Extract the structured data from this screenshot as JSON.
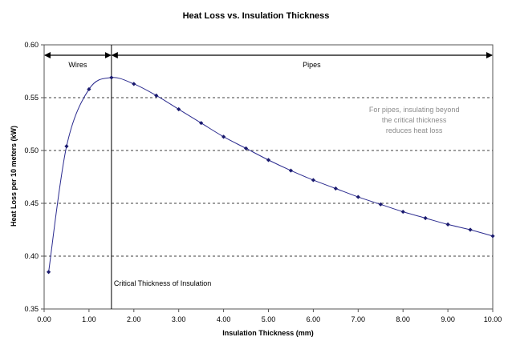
{
  "chart_data": {
    "type": "line",
    "title": "Heat Loss vs. Insulation Thickness",
    "xlabel": "Insulation Thickness (mm)",
    "ylabel": "Heat Loss per 10 meters (kW)",
    "xlim": [
      0,
      10
    ],
    "ylim": [
      0.35,
      0.6
    ],
    "x_ticks": [
      "0.00",
      "1.00",
      "2.00",
      "3.00",
      "4.00",
      "5.00",
      "6.00",
      "7.00",
      "8.00",
      "9.00",
      "10.00"
    ],
    "y_ticks": [
      "0.35",
      "0.40",
      "0.45",
      "0.50",
      "0.55",
      "0.60"
    ],
    "grid": "horizontal dashed",
    "series": [
      {
        "color": "#2b2b8f",
        "points": [
          [
            0.1,
            0.385
          ],
          [
            0.5,
            0.504
          ],
          [
            1.0,
            0.558
          ],
          [
            1.5,
            0.569
          ],
          [
            2.0,
            0.563
          ],
          [
            2.5,
            0.552
          ],
          [
            3.0,
            0.539
          ],
          [
            3.5,
            0.526
          ],
          [
            4.0,
            0.513
          ],
          [
            4.5,
            0.502
          ],
          [
            5.0,
            0.491
          ],
          [
            5.5,
            0.481
          ],
          [
            6.0,
            0.472
          ],
          [
            6.5,
            0.464
          ],
          [
            7.0,
            0.456
          ],
          [
            7.5,
            0.449
          ],
          [
            8.0,
            0.442
          ],
          [
            8.5,
            0.436
          ],
          [
            9.0,
            0.43
          ],
          [
            9.5,
            0.425
          ],
          [
            10.0,
            0.419
          ]
        ]
      }
    ],
    "critical_thickness": 1.5,
    "annotations": {
      "wires": "Wires",
      "pipes": "Pipes",
      "critical": "Critical Thickness of Insulation",
      "note_lines": [
        "For pipes, insulating beyond",
        "the critical thickness",
        "reduces heat loss"
      ]
    }
  }
}
